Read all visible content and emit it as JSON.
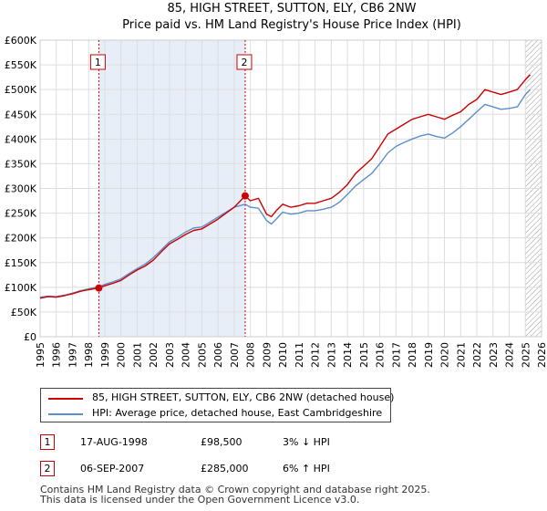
{
  "chart_data": {
    "type": "line",
    "title": "85, HIGH STREET, SUTTON, ELY, CB6 2NW",
    "subtitle": "Price paid vs. HM Land Registry's House Price Index (HPI)",
    "xlim": [
      1995,
      2026
    ],
    "ylim": [
      0,
      600000
    ],
    "x_ticks": [
      1995,
      1996,
      1997,
      1998,
      1999,
      2000,
      2001,
      2002,
      2003,
      2004,
      2005,
      2006,
      2007,
      2008,
      2009,
      2010,
      2011,
      2012,
      2013,
      2014,
      2015,
      2016,
      2017,
      2018,
      2019,
      2020,
      2021,
      2022,
      2023,
      2024,
      2025,
      2026
    ],
    "y_ticks": [
      0,
      50000,
      100000,
      150000,
      200000,
      250000,
      300000,
      350000,
      400000,
      450000,
      500000,
      550000,
      600000
    ],
    "y_tick_labels": [
      "£0",
      "£50K",
      "£100K",
      "£150K",
      "£200K",
      "£250K",
      "£300K",
      "£350K",
      "£400K",
      "£450K",
      "£500K",
      "£550K",
      "£600K"
    ],
    "grid": true,
    "series": [
      {
        "name": "85, HIGH STREET, SUTTON, ELY, CB6 2NW (detached house)",
        "color": "#cc0000",
        "x": [
          1995.0,
          1995.5,
          1996.0,
          1996.5,
          1997.0,
          1997.5,
          1998.0,
          1998.63,
          1999.0,
          1999.5,
          2000.0,
          2000.5,
          2001.0,
          2001.5,
          2002.0,
          2002.5,
          2003.0,
          2003.5,
          2004.0,
          2004.5,
          2005.0,
          2005.5,
          2006.0,
          2006.5,
          2007.0,
          2007.68,
          2008.0,
          2008.5,
          2009.0,
          2009.3,
          2009.6,
          2010.0,
          2010.5,
          2011.0,
          2011.5,
          2012.0,
          2012.5,
          2013.0,
          2013.5,
          2014.0,
          2014.5,
          2015.0,
          2015.5,
          2016.0,
          2016.5,
          2017.0,
          2017.5,
          2018.0,
          2018.5,
          2019.0,
          2019.5,
          2020.0,
          2020.5,
          2021.0,
          2021.5,
          2022.0,
          2022.5,
          2023.0,
          2023.5,
          2024.0,
          2024.5,
          2025.0,
          2025.3
        ],
        "values": [
          78000,
          81000,
          80000,
          83000,
          87000,
          92000,
          95000,
          98500,
          103000,
          108000,
          114000,
          125000,
          135000,
          143000,
          155000,
          172000,
          188000,
          197000,
          207000,
          215000,
          218000,
          228000,
          238000,
          250000,
          262000,
          285000,
          275000,
          280000,
          248000,
          243000,
          255000,
          268000,
          262000,
          265000,
          270000,
          270000,
          275000,
          280000,
          292000,
          308000,
          330000,
          345000,
          360000,
          385000,
          410000,
          420000,
          430000,
          440000,
          445000,
          450000,
          445000,
          440000,
          448000,
          455000,
          470000,
          480000,
          500000,
          495000,
          490000,
          495000,
          500000,
          520000,
          530000
        ]
      },
      {
        "name": "HPI: Average price, detached house, East Cambridgeshire",
        "color": "#5b8fcb",
        "x": [
          1995.0,
          1995.5,
          1996.0,
          1996.5,
          1997.0,
          1997.5,
          1998.0,
          1998.63,
          1999.0,
          1999.5,
          2000.0,
          2000.5,
          2001.0,
          2001.5,
          2002.0,
          2002.5,
          2003.0,
          2003.5,
          2004.0,
          2004.5,
          2005.0,
          2005.5,
          2006.0,
          2006.5,
          2007.0,
          2007.68,
          2008.0,
          2008.5,
          2009.0,
          2009.3,
          2009.6,
          2010.0,
          2010.5,
          2011.0,
          2011.5,
          2012.0,
          2012.5,
          2013.0,
          2013.5,
          2014.0,
          2014.5,
          2015.0,
          2015.5,
          2016.0,
          2016.5,
          2017.0,
          2017.5,
          2018.0,
          2018.5,
          2019.0,
          2019.5,
          2020.0,
          2020.5,
          2021.0,
          2021.5,
          2022.0,
          2022.5,
          2023.0,
          2023.5,
          2024.0,
          2024.5,
          2025.0,
          2025.3
        ],
        "values": [
          80000,
          82000,
          81000,
          84000,
          88000,
          93000,
          97000,
          101000,
          106000,
          111000,
          117000,
          128000,
          138000,
          147000,
          160000,
          176000,
          192000,
          201000,
          212000,
          220000,
          222000,
          232000,
          242000,
          252000,
          262000,
          268000,
          262000,
          260000,
          235000,
          228000,
          238000,
          252000,
          248000,
          250000,
          255000,
          255000,
          258000,
          262000,
          272000,
          288000,
          305000,
          318000,
          330000,
          350000,
          372000,
          385000,
          393000,
          400000,
          406000,
          410000,
          405000,
          402000,
          412000,
          425000,
          440000,
          455000,
          470000,
          465000,
          460000,
          462000,
          465000,
          490000,
          500000
        ]
      }
    ],
    "sales": [
      {
        "label": "1",
        "x": 1998.63,
        "value": 98500
      },
      {
        "label": "2",
        "x": 2007.68,
        "value": 285000
      }
    ],
    "shaded_periods": [
      {
        "start": 1998.63,
        "end": 2007.68
      }
    ],
    "hatched_from": 2025.0
  },
  "legend": [
    {
      "label": "85, HIGH STREET, SUTTON, ELY, CB6 2NW (detached house)",
      "color": "#cc0000"
    },
    {
      "label": "HPI: Average price, detached house, East Cambridgeshire",
      "color": "#5b8fcb"
    }
  ],
  "sales_table": [
    {
      "num": "1",
      "date": "17-AUG-1998",
      "price": "£98,500",
      "hpi": "3% ↓ HPI"
    },
    {
      "num": "2",
      "date": "06-SEP-2007",
      "price": "£285,000",
      "hpi": "6% ↑ HPI"
    }
  ],
  "footer": {
    "line1": "Contains HM Land Registry data © Crown copyright and database right 2025.",
    "line2": "This data is licensed under the Open Government Licence v3.0."
  }
}
